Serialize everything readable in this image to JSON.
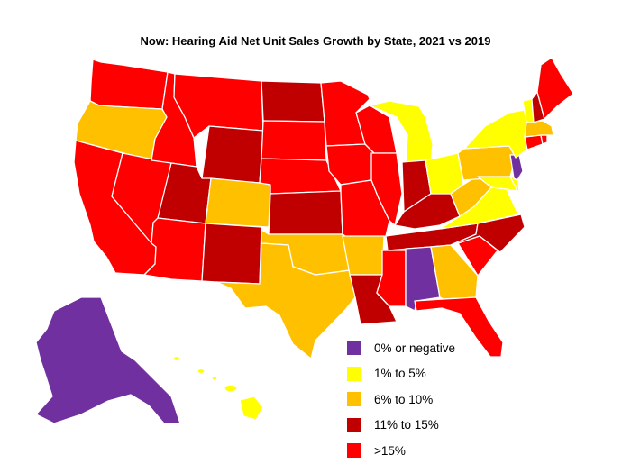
{
  "title": "Now: Hearing Aid Net Unit Sales Growth by State, 2021 vs 2019",
  "colors": {
    "negative": "#7030a0",
    "low": "#ffff00",
    "mid": "#ffc000",
    "high": "#c00000",
    "top": "#ff0000"
  },
  "legend": [
    {
      "key": "negative",
      "label": "0% or negative"
    },
    {
      "key": "low",
      "label": "1% to 5%"
    },
    {
      "key": "mid",
      "label": "6% to 10%"
    },
    {
      "key": "high",
      "label": "11% to 15%"
    },
    {
      "key": "top",
      "label": ">15%"
    }
  ],
  "state_categories": {
    "WA": "top",
    "OR": "mid",
    "CA": "top",
    "NV": "top",
    "ID": "top",
    "MT": "top",
    "WY": "high",
    "UT": "high",
    "AZ": "top",
    "CO": "mid",
    "NM": "high",
    "ND": "high",
    "SD": "top",
    "NE": "top",
    "KS": "high",
    "OK": "mid",
    "TX": "mid",
    "MN": "top",
    "IA": "top",
    "MO": "top",
    "AR": "mid",
    "LA": "high",
    "WI": "top",
    "IL": "top",
    "MI": "low",
    "IN": "high",
    "OH": "low",
    "KY": "high",
    "TN": "high",
    "MS": "top",
    "AL": "negative",
    "GA": "mid",
    "FL": "top",
    "SC": "top",
    "NC": "high",
    "VA": "low",
    "WV": "mid",
    "PA": "mid",
    "NY": "low",
    "NJ": "negative",
    "DE": "low",
    "MD": "low",
    "CT": "top",
    "RI": "top",
    "MA": "mid",
    "VT": "low",
    "NH": "high",
    "ME": "top",
    "AK": "negative",
    "HI": "low"
  }
}
